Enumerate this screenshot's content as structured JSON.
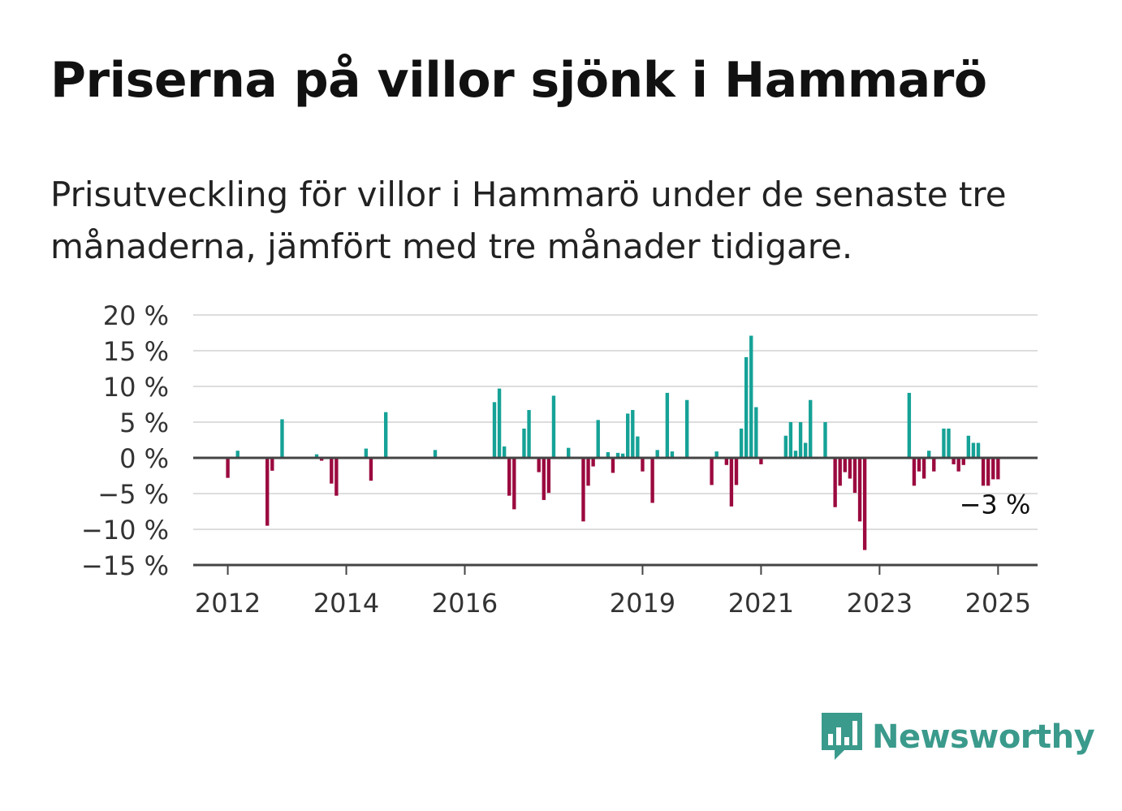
{
  "title": "Priserna på villor sjönk i Hammarö",
  "subtitle": "Prisutveckling för villor i Hammarö under de senaste tre månaderna, jämfört med tre månader tidigare.",
  "brand": "Newsworthy",
  "colors": {
    "positive": "#16a297",
    "negative": "#9b0a3f",
    "grid": "#dddddd",
    "axis": "#444444",
    "brand": "#3a9a8c"
  },
  "chart_data": {
    "type": "bar",
    "ylim": [
      -15,
      20
    ],
    "yticks": [
      20,
      15,
      10,
      5,
      0,
      -5,
      -10,
      -15
    ],
    "ytick_labels": [
      "20 %",
      "15 %",
      "10 %",
      "5 %",
      "0 %",
      "−5 %",
      "−10 %",
      "−15 %"
    ],
    "xlim": [
      "2011-06",
      "2025-09"
    ],
    "xticks": [
      {
        "label": "2012",
        "date": "2012-01"
      },
      {
        "label": "2014",
        "date": "2014-01"
      },
      {
        "label": "2016",
        "date": "2016-01"
      },
      {
        "label": "2019",
        "date": "2019-01"
      },
      {
        "label": "2021",
        "date": "2021-01"
      },
      {
        "label": "2023",
        "date": "2023-01"
      },
      {
        "label": "2025",
        "date": "2025-01"
      }
    ],
    "annotation": {
      "text": "−3 %",
      "date": "2025-01",
      "value": -3
    },
    "grid": true,
    "series": [
      {
        "points": [
          [
            "2012-01",
            -2.8
          ],
          [
            "2012-03",
            1.0
          ],
          [
            "2012-09",
            -9.5
          ],
          [
            "2012-10",
            -1.8
          ],
          [
            "2012-12",
            5.4
          ],
          [
            "2013-07",
            0.5
          ],
          [
            "2013-08",
            -0.4
          ],
          [
            "2013-10",
            -3.6
          ],
          [
            "2013-11",
            -5.3
          ],
          [
            "2014-05",
            1.3
          ],
          [
            "2014-06",
            -3.2
          ],
          [
            "2014-09",
            6.4
          ],
          [
            "2015-07",
            1.1
          ],
          [
            "2016-07",
            7.8
          ],
          [
            "2016-08",
            9.7
          ],
          [
            "2016-09",
            1.6
          ],
          [
            "2016-10",
            -5.3
          ],
          [
            "2016-11",
            -7.2
          ],
          [
            "2017-01",
            4.1
          ],
          [
            "2017-02",
            6.7
          ],
          [
            "2017-04",
            -2.0
          ],
          [
            "2017-05",
            -5.9
          ],
          [
            "2017-06",
            -4.9
          ],
          [
            "2017-07",
            8.7
          ],
          [
            "2017-10",
            1.4
          ],
          [
            "2018-01",
            -8.9
          ],
          [
            "2018-02",
            -3.9
          ],
          [
            "2018-03",
            -1.2
          ],
          [
            "2018-04",
            5.3
          ],
          [
            "2018-06",
            0.8
          ],
          [
            "2018-07",
            -2.1
          ],
          [
            "2018-08",
            0.7
          ],
          [
            "2018-09",
            0.6
          ],
          [
            "2018-10",
            6.2
          ],
          [
            "2018-11",
            6.7
          ],
          [
            "2018-12",
            3.0
          ],
          [
            "2019-01",
            -1.9
          ],
          [
            "2019-03",
            -6.3
          ],
          [
            "2019-04",
            1.1
          ],
          [
            "2019-06",
            9.1
          ],
          [
            "2019-07",
            0.9
          ],
          [
            "2019-10",
            8.1
          ],
          [
            "2020-03",
            -3.8
          ],
          [
            "2020-04",
            0.9
          ],
          [
            "2020-06",
            -1.0
          ],
          [
            "2020-07",
            -6.8
          ],
          [
            "2020-08",
            -3.8
          ],
          [
            "2020-09",
            4.1
          ],
          [
            "2020-10",
            14.1
          ],
          [
            "2020-11",
            17.1
          ],
          [
            "2020-12",
            7.1
          ],
          [
            "2021-01",
            -0.9
          ],
          [
            "2021-06",
            3.1
          ],
          [
            "2021-07",
            5.0
          ],
          [
            "2021-08",
            1.0
          ],
          [
            "2021-09",
            5.0
          ],
          [
            "2021-10",
            2.1
          ],
          [
            "2021-11",
            8.1
          ],
          [
            "2022-02",
            5.0
          ],
          [
            "2022-04",
            -6.9
          ],
          [
            "2022-05",
            -3.9
          ],
          [
            "2022-06",
            -2.0
          ],
          [
            "2022-07",
            -2.9
          ],
          [
            "2022-08",
            -4.9
          ],
          [
            "2022-09",
            -8.9
          ],
          [
            "2022-10",
            -12.9
          ],
          [
            "2023-07",
            9.1
          ],
          [
            "2023-08",
            -3.9
          ],
          [
            "2023-09",
            -1.9
          ],
          [
            "2023-10",
            -2.9
          ],
          [
            "2023-11",
            1.0
          ],
          [
            "2023-12",
            -1.9
          ],
          [
            "2024-02",
            4.1
          ],
          [
            "2024-03",
            4.1
          ],
          [
            "2024-04",
            -0.9
          ],
          [
            "2024-05",
            -1.9
          ],
          [
            "2024-06",
            -1.0
          ],
          [
            "2024-07",
            3.1
          ],
          [
            "2024-08",
            2.1
          ],
          [
            "2024-09",
            2.1
          ],
          [
            "2024-10",
            -3.9
          ],
          [
            "2024-11",
            -3.9
          ],
          [
            "2024-12",
            -3.0
          ],
          [
            "2025-01",
            -3.0
          ]
        ]
      }
    ]
  }
}
